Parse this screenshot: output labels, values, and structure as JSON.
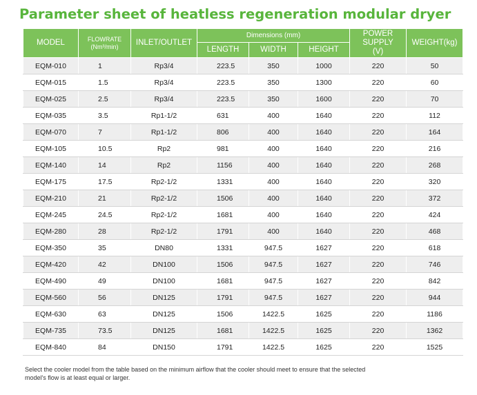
{
  "title": "Parameter sheet of heatless regeneration modular dryer",
  "headers": {
    "model": "MODEL",
    "flowrate": "FLOWRATE",
    "flowrate_unit": "(Nm³/min)",
    "inlet_outlet": "INLET/OUTLET",
    "dimensions": "Dimensions (mm)",
    "length": "LENGTH",
    "width": "WIDTH",
    "height": "HEIGHT",
    "power_supply": "POWER SUPPLY",
    "power_unit": "(V)",
    "weight": "WEIGHT(kg)"
  },
  "rows": [
    {
      "model": "EQM-010",
      "flow": "1",
      "io": "Rp3/4",
      "length": "223.5",
      "width": "350",
      "height": "1000",
      "power": "220",
      "weight": "50"
    },
    {
      "model": "EQM-015",
      "flow": "1.5",
      "io": "Rp3/4",
      "length": "223.5",
      "width": "350",
      "height": "1300",
      "power": "220",
      "weight": "60"
    },
    {
      "model": "EQM-025",
      "flow": "2.5",
      "io": "Rp3/4",
      "length": "223.5",
      "width": "350",
      "height": "1600",
      "power": "220",
      "weight": "70"
    },
    {
      "model": "EQM-035",
      "flow": "3.5",
      "io": "Rp1-1/2",
      "length": "631",
      "width": "400",
      "height": "1640",
      "power": "220",
      "weight": "112"
    },
    {
      "model": "EQM-070",
      "flow": "7",
      "io": "Rp1-1/2",
      "length": "806",
      "width": "400",
      "height": "1640",
      "power": "220",
      "weight": "164"
    },
    {
      "model": "EQM-105",
      "flow": "10.5",
      "io": "Rp2",
      "length": "981",
      "width": "400",
      "height": "1640",
      "power": "220",
      "weight": "216"
    },
    {
      "model": "EQM-140",
      "flow": "14",
      "io": "Rp2",
      "length": "1156",
      "width": "400",
      "height": "1640",
      "power": "220",
      "weight": "268"
    },
    {
      "model": "EQM-175",
      "flow": "17.5",
      "io": "Rp2-1/2",
      "length": "1331",
      "width": "400",
      "height": "1640",
      "power": "220",
      "weight": "320"
    },
    {
      "model": "EQM-210",
      "flow": "21",
      "io": "Rp2-1/2",
      "length": "1506",
      "width": "400",
      "height": "1640",
      "power": "220",
      "weight": "372"
    },
    {
      "model": "EQM-245",
      "flow": "24.5",
      "io": "Rp2-1/2",
      "length": "1681",
      "width": "400",
      "height": "1640",
      "power": "220",
      "weight": "424"
    },
    {
      "model": "EQM-280",
      "flow": "28",
      "io": "Rp2-1/2",
      "length": "1791",
      "width": "400",
      "height": "1640",
      "power": "220",
      "weight": "468"
    },
    {
      "model": "EQM-350",
      "flow": "35",
      "io": "DN80",
      "length": "1331",
      "width": "947.5",
      "height": "1627",
      "power": "220",
      "weight": "618"
    },
    {
      "model": "EQM-420",
      "flow": "42",
      "io": "DN100",
      "length": "1506",
      "width": "947.5",
      "height": "1627",
      "power": "220",
      "weight": "746"
    },
    {
      "model": "EQM-490",
      "flow": "49",
      "io": "DN100",
      "length": "1681",
      "width": "947.5",
      "height": "1627",
      "power": "220",
      "weight": "842"
    },
    {
      "model": "EQM-560",
      "flow": "56",
      "io": "DN125",
      "length": "1791",
      "width": "947.5",
      "height": "1627",
      "power": "220",
      "weight": "944"
    },
    {
      "model": "EQM-630",
      "flow": "63",
      "io": "DN125",
      "length": "1506",
      "width": "1422.5",
      "height": "1625",
      "power": "220",
      "weight": "1186"
    },
    {
      "model": "EQM-735",
      "flow": "73.5",
      "io": "DN125",
      "length": "1681",
      "width": "1422.5",
      "height": "1625",
      "power": "220",
      "weight": "1362"
    },
    {
      "model": "EQM-840",
      "flow": "84",
      "io": "DN150",
      "length": "1791",
      "width": "1422.5",
      "height": "1625",
      "power": "220",
      "weight": "1525"
    }
  ],
  "note": "Select the cooler model from the table based on the minimum airflow that the cooler should meet to ensure that the selected model's flow is at least equal or larger.",
  "colors": {
    "title": "#58b53c",
    "header_bg": "#7dc25a",
    "row_shade": "#eeeeee"
  }
}
